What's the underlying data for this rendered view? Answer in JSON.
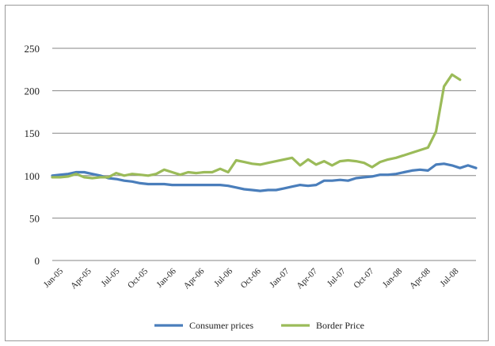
{
  "chart_data": {
    "type": "line",
    "title": "",
    "xlabel": "",
    "ylabel": "",
    "ylim": [
      0,
      250
    ],
    "yticks": [
      0,
      50,
      100,
      150,
      200,
      250
    ],
    "grid": "horizontal",
    "legend": "bottom",
    "x_tick_labels": [
      "Jan-05",
      "Apr-05",
      "Jul-05",
      "Oct-05",
      "Jan-06",
      "Apr-06",
      "Jul-06",
      "Oct-06",
      "Jan-07",
      "Apr-07",
      "Jul-07",
      "Oct-07",
      "Jan-08",
      "Apr-08",
      "Jul-08"
    ],
    "series": [
      {
        "name": "Consumer prices",
        "color": "#4a7ebb",
        "values": [
          100,
          101,
          102,
          104,
          104,
          102,
          100,
          97,
          96,
          94,
          93,
          91,
          90,
          90,
          90,
          89,
          89,
          89,
          89,
          89,
          89,
          89,
          88,
          86,
          84,
          83,
          82,
          83,
          83,
          85,
          87,
          89,
          88,
          89,
          94,
          94,
          95,
          94,
          97,
          98,
          99,
          101,
          101,
          102,
          104,
          106,
          107,
          106,
          113,
          114,
          112,
          109,
          112,
          109
        ]
      },
      {
        "name": "Border Price",
        "color": "#9bbb59",
        "values": [
          98,
          98,
          99,
          102,
          98,
          97,
          98,
          98,
          103,
          100,
          102,
          101,
          100,
          102,
          107,
          104,
          101,
          104,
          103,
          104,
          104,
          108,
          104,
          118,
          116,
          114,
          113,
          115,
          117,
          119,
          121,
          112,
          119,
          113,
          117,
          112,
          117,
          118,
          117,
          115,
          110,
          116,
          119,
          121,
          124,
          127,
          130,
          133,
          152,
          205,
          219,
          213
        ]
      }
    ]
  }
}
